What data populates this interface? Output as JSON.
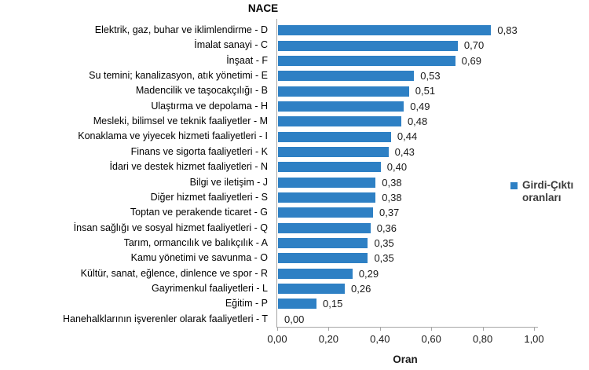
{
  "title": "NACE",
  "legend": {
    "line1": "Girdi-Çıktı",
    "line2": "oranları",
    "full_label": "Girdi-Çıktı oranları"
  },
  "colors": {
    "bar": "#2e80c4",
    "axis": "#a6a6a6",
    "text": "#000000",
    "legend_text": "#3d3d3d"
  },
  "chart_data": {
    "type": "bar",
    "orientation": "horizontal",
    "title": "NACE",
    "xlabel": "Oran",
    "xlim": [
      0,
      1
    ],
    "grid": false,
    "legend_position": "right",
    "legend": [
      "Girdi-Çıktı oranları"
    ],
    "x_ticks": [
      0,
      0.2,
      0.4,
      0.6,
      0.8,
      1.0
    ],
    "x_tick_labels": [
      "0,00",
      "0,20",
      "0,40",
      "0,60",
      "0,80",
      "1,00"
    ],
    "categories": [
      "Elektrik, gaz, buhar ve iklimlendirme - D",
      "İmalat sanayi - C",
      "İnşaat - F",
      "Su temini; kanalizasyon, atık yönetimi - E",
      "Madencilik ve taşocakçılığı - B",
      "Ulaştırma ve depolama - H",
      "Mesleki, bilimsel ve teknik faaliyetler - M",
      "Konaklama ve yiyecek hizmeti faaliyetleri - I",
      "Finans ve sigorta faaliyetleri - K",
      "İdari ve destek hizmet faaliyetleri - N",
      "Bilgi ve iletişim - J",
      "Diğer hizmet faaliyetleri - S",
      "Toptan ve perakende ticaret - G",
      "İnsan sağlığı ve sosyal hizmet faaliyetleri - Q",
      "Tarım, ormancılık ve balıkçılık - A",
      "Kamu yönetimi ve savunma - O",
      "Kültür, sanat, eğlence, dinlence ve spor - R",
      "Gayrimenkul faaliyetleri - L",
      "Eğitim - P",
      "Hanehalklarının işverenler olarak faaliyetleri - T"
    ],
    "values": [
      0.83,
      0.7,
      0.69,
      0.53,
      0.51,
      0.49,
      0.48,
      0.44,
      0.43,
      0.4,
      0.38,
      0.38,
      0.37,
      0.36,
      0.35,
      0.35,
      0.29,
      0.26,
      0.15,
      0.0
    ],
    "value_labels": [
      "0,83",
      "0,70",
      "0,69",
      "0,53",
      "0,51",
      "0,49",
      "0,48",
      "0,44",
      "0,43",
      "0,40",
      "0,38",
      "0,38",
      "0,37",
      "0,36",
      "0,35",
      "0,35",
      "0,29",
      "0,26",
      "0,15",
      "0,00"
    ]
  }
}
